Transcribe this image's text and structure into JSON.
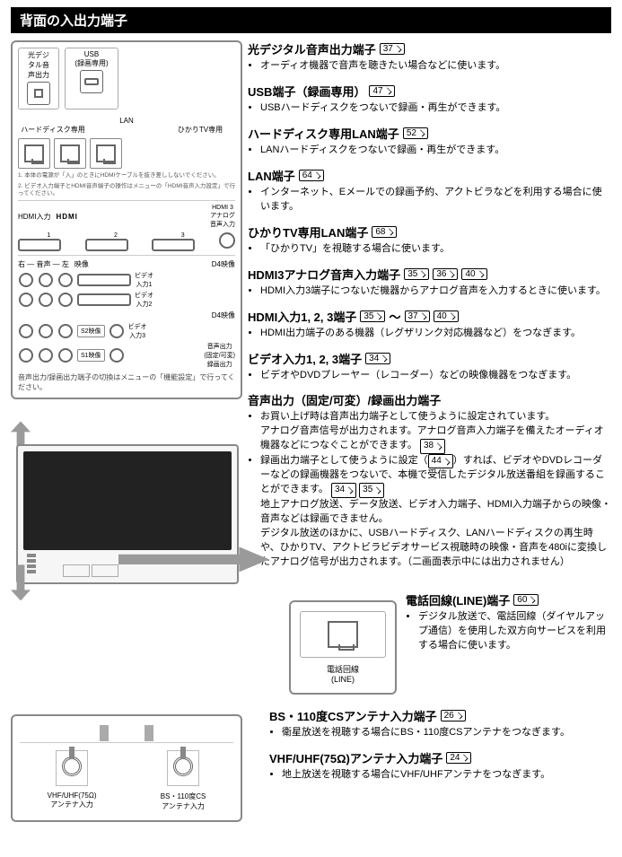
{
  "header": "背面の入出力端子",
  "panel": {
    "optical_label": "光デジ\nタル音\n声出力",
    "usb_label": "USB\n(録画専用)",
    "lan_label": "LAN",
    "hdd_lan_label": "ハードディスク専用",
    "hikari_lan_label": "ひかりTV専用",
    "fine1": "1. 本体の電源が「入」のときにHDMIケーブルを抜き差ししないでください。",
    "fine2": "2. ビデオ入力端子とHDMI音声端子の操作はメニューの「HDMI音声入力設定」で行ってください。",
    "hdmi_in_label": "HDMI入力",
    "hdmi_logo": "HDMI",
    "hdmi3_analog_label": "HDMI 3\nアナログ\n音声入力",
    "audio_label_l": "左",
    "audio_label_r": "右",
    "audio_label": "音声",
    "video_label": "映像",
    "d4_label": "D4映像",
    "vin1": "ビデオ\n入力1",
    "vin2": "ビデオ\n入力2",
    "vin3": "ビデオ\n入力3",
    "s2_label": "S2映像",
    "s1_label": "S1映像",
    "audio_out_label": "音声出力\n(固定/可変)\n録画出力",
    "caption": "音声出力/録画出力端子の切換はメニューの「機能設定」で行ってください。"
  },
  "descs": [
    {
      "title": "光デジタル音声出力端子",
      "refs": [
        "37"
      ],
      "bullets": [
        "オーディオ機器で音声を聴きたい場合などに使います。"
      ]
    },
    {
      "title": "USB端子（録画専用）",
      "refs": [
        "47"
      ],
      "bullets": [
        "USBハードディスクをつないで録画・再生ができます。"
      ]
    },
    {
      "title": "ハードディスク専用LAN端子",
      "refs": [
        "52"
      ],
      "bullets": [
        "LANハードディスクをつないで録画・再生ができます。"
      ]
    },
    {
      "title": "LAN端子",
      "refs": [
        "64"
      ],
      "bullets": [
        "インターネット、Eメールでの録画予約、アクトビラなどを利用する場合に使います。"
      ]
    },
    {
      "title": "ひかりTV専用LAN端子",
      "refs": [
        "68"
      ],
      "bullets": [
        "「ひかりTV」を視聴する場合に使います。"
      ]
    },
    {
      "title": "HDMI3アナログ音声入力端子",
      "refs": [
        "35",
        "36",
        "40"
      ],
      "bullets": [
        "HDMI入力3端子につないだ機器からアナログ音声を入力するときに使います。"
      ]
    },
    {
      "title": "HDMI入力1, 2, 3端子",
      "refs": [
        "35",
        "37",
        "40"
      ],
      "refs_sep": "～",
      "bullets": [
        "HDMI出力端子のある機器（レグザリンク対応機器など）をつなぎます。"
      ]
    },
    {
      "title": "ビデオ入力1, 2, 3端子",
      "refs": [
        "34"
      ],
      "bullets": [
        "ビデオやDVDプレーヤー（レコーダー）などの映像機器をつなぎます。"
      ]
    }
  ],
  "audio_out": {
    "title": "音声出力（固定/可変）/録画出力端子",
    "b1_pre": "お買い上げ時は音声出力端子として使うように設定されています。\nアナログ音声信号が出力されます。アナログ音声入力端子を備えたオーディオ機器などにつなぐことができます。",
    "b1_ref": "38",
    "b2_pre": "録画出力端子として使うように設定（",
    "b2_ref1": "44",
    "b2_mid": "）すれば、ビデオやDVDレコーダーなどの録画機器をつないで、本機で受信したデジタル放送番組を録画することができます。",
    "b2_ref2": "34",
    "b2_ref3": "35",
    "p1": "地上アナログ放送、データ放送、ビデオ入力端子、HDMI入力端子からの映像・音声などは録画できません。",
    "p2": "デジタル放送のほかに、USBハードディスク、LANハードディスクの再生時や、ひかりTV、アクトビラビデオサービス視聴時の映像・音声を480iに変換したアナログ信号が出力されます。（二画面表示中には出力されません）"
  },
  "line": {
    "title": "電話回線(LINE)端子",
    "ref": "60",
    "bullet": "デジタル放送で、電話回線（ダイヤルアップ通信）を使用した双方向サービスを利用する場合に使います。",
    "box_label": "電話回線\n(LINE)"
  },
  "ant": {
    "bs": {
      "title": "BS・110度CSアンテナ入力端子",
      "ref": "26",
      "bullet": "衛星放送を視聴する場合にBS・110度CSアンテナをつなぎます。"
    },
    "vhf": {
      "title": "VHF/UHF(75Ω)アンテナ入力端子",
      "ref": "24",
      "bullet": "地上放送を視聴する場合にVHF/UHFアンテナをつなぎます。"
    },
    "port1": "VHF/UHF(75Ω)\nアンテナ入力",
    "port2": "BS・110度CS\nアンテナ入力"
  }
}
